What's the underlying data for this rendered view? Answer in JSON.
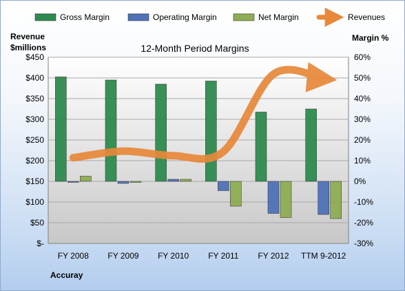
{
  "chart_data": {
    "type": "bar",
    "title": "12-Month Period Margins",
    "company": "Accuray",
    "left_axis_label": [
      "Revenue",
      "$millions"
    ],
    "right_axis_label": "Margin %",
    "left_ticks": [
      "$-",
      "$50",
      "$100",
      "$150",
      "$200",
      "$250",
      "$300",
      "$350",
      "$400",
      "$450"
    ],
    "right_ticks": [
      "-30%",
      "-20%",
      "-10%",
      "0%",
      "10%",
      "20%",
      "30%",
      "40%",
      "50%",
      "60%"
    ],
    "ylim_left": [
      0,
      450
    ],
    "ylim_right": [
      -30,
      60
    ],
    "categories": [
      "FY 2008",
      "FY 2009",
      "FY 2010",
      "FY 2011",
      "FY 2012",
      "TTM 9-2012"
    ],
    "series": [
      {
        "name": "Gross Margin",
        "axis": "right",
        "color": "#2e8b4e",
        "values": [
          50.5,
          49,
          47,
          48.5,
          33.5,
          35
        ]
      },
      {
        "name": "Operating Margin",
        "axis": "right",
        "color": "#4f72b8",
        "values": [
          -0.5,
          -1,
          1,
          -4.5,
          -15.5,
          -16
        ]
      },
      {
        "name": "Net Margin",
        "axis": "right",
        "color": "#8fad53",
        "values": [
          2.5,
          -0.3,
          1,
          -12,
          -17.5,
          -18
        ]
      },
      {
        "name": "Revenues",
        "axis": "left",
        "type": "line",
        "color": "#e8883a",
        "values": [
          207,
          223,
          212,
          222,
          409,
          398
        ]
      }
    ],
    "grid": true,
    "legend_position": "top"
  }
}
